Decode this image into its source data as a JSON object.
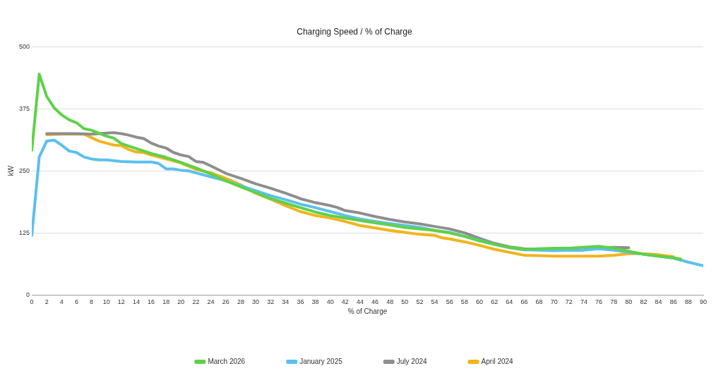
{
  "chart_data": {
    "type": "line",
    "title": "Charging Speed / % of Charge",
    "xlabel": "% of Charge",
    "ylabel": "kW",
    "xlim": [
      0,
      90
    ],
    "xticks": [
      0,
      2,
      4,
      6,
      8,
      10,
      12,
      14,
      16,
      18,
      20,
      22,
      24,
      26,
      28,
      30,
      32,
      34,
      36,
      38,
      40,
      42,
      44,
      46,
      48,
      50,
      52,
      54,
      56,
      58,
      60,
      62,
      64,
      66,
      68,
      70,
      72,
      74,
      76,
      78,
      80,
      82,
      84,
      86,
      88,
      90
    ],
    "ylim": [
      0,
      500
    ],
    "yticks": [
      0,
      125,
      250,
      375,
      500
    ],
    "grid": "y",
    "legend": "bottom",
    "marker": "none",
    "line_style": "solid",
    "series": [
      {
        "name": "March 2026",
        "color": "#5fd147",
        "x": [
          0,
          1,
          2,
          3,
          4,
          5,
          6,
          7,
          8,
          10,
          11,
          12,
          14,
          16,
          18,
          20,
          22,
          24,
          26,
          28,
          30,
          32,
          34,
          36,
          38,
          40,
          44,
          48,
          50,
          54,
          56,
          58,
          60,
          62,
          64,
          66,
          70,
          72,
          76,
          78,
          80,
          82,
          84,
          86,
          87
        ],
        "values": [
          292,
          445,
          400,
          377,
          363,
          353,
          347,
          335,
          332,
          320,
          316,
          305,
          295,
          285,
          277,
          267,
          256,
          244,
          230,
          218,
          206,
          194,
          185,
          176,
          167,
          160,
          150,
          141,
          136,
          130,
          125,
          118,
          109,
          102,
          96,
          92,
          94,
          94,
          98,
          94,
          88,
          82,
          78,
          75,
          72
        ]
      },
      {
        "name": "January 2025",
        "color": "#5bc0f0",
        "x": [
          0,
          1,
          2,
          3,
          4,
          5,
          6,
          7,
          8,
          9,
          10,
          12,
          14,
          16,
          17,
          18,
          19,
          20,
          21,
          22,
          24,
          26,
          28,
          30,
          32,
          34,
          36,
          38,
          40,
          42,
          44,
          46,
          48,
          50,
          52,
          54,
          56,
          58,
          60,
          62,
          64,
          66,
          68,
          70,
          72,
          74,
          76,
          78,
          80,
          82,
          84,
          86,
          88,
          90
        ],
        "values": [
          120,
          278,
          310,
          312,
          302,
          290,
          287,
          278,
          274,
          272,
          272,
          269,
          268,
          268,
          265,
          254,
          254,
          251,
          250,
          246,
          238,
          230,
          220,
          210,
          200,
          192,
          183,
          176,
          168,
          160,
          153,
          148,
          144,
          140,
          136,
          130,
          126,
          118,
          110,
          102,
          95,
          91,
          90,
          89,
          90,
          90,
          93,
          90,
          86,
          82,
          78,
          74,
          66,
          59
        ]
      },
      {
        "name": "July 2024",
        "color": "#8e8e8e",
        "x": [
          2,
          4,
          6,
          8,
          10,
          11,
          12,
          13,
          14,
          15,
          16,
          17,
          18,
          19,
          20,
          21,
          22,
          23,
          24,
          26,
          28,
          30,
          32,
          34,
          36,
          38,
          40,
          41,
          42,
          44,
          46,
          48,
          50,
          52,
          54,
          56,
          58,
          60,
          62,
          64,
          66,
          68,
          70,
          72,
          74,
          76,
          78,
          80
        ],
        "values": [
          325,
          325,
          325,
          324,
          326,
          327,
          325,
          322,
          318,
          315,
          306,
          300,
          296,
          287,
          282,
          279,
          269,
          267,
          260,
          245,
          235,
          224,
          215,
          205,
          194,
          186,
          180,
          176,
          170,
          165,
          158,
          152,
          147,
          143,
          138,
          133,
          125,
          114,
          104,
          97,
          93,
          91,
          90,
          90,
          91,
          95,
          96,
          95
        ]
      },
      {
        "name": "April 2024",
        "color": "#f2b41d",
        "x": [
          2,
          4,
          6,
          7,
          8,
          9,
          10,
          11,
          12,
          13,
          14,
          15,
          16,
          18,
          20,
          22,
          24,
          26,
          28,
          30,
          32,
          34,
          36,
          38,
          40,
          42,
          44,
          46,
          48,
          50,
          52,
          54,
          55,
          56,
          58,
          60,
          62,
          64,
          66,
          68,
          70,
          74,
          76,
          78,
          80,
          82,
          84,
          86
        ],
        "values": [
          323,
          324,
          324,
          324,
          317,
          310,
          306,
          302,
          301,
          293,
          288,
          287,
          282,
          274,
          266,
          253,
          246,
          235,
          222,
          205,
          193,
          180,
          168,
          160,
          155,
          148,
          140,
          135,
          130,
          126,
          122,
          120,
          115,
          113,
          107,
          100,
          92,
          86,
          80,
          79,
          78,
          78,
          78,
          80,
          83,
          83,
          81,
          77
        ]
      }
    ]
  }
}
